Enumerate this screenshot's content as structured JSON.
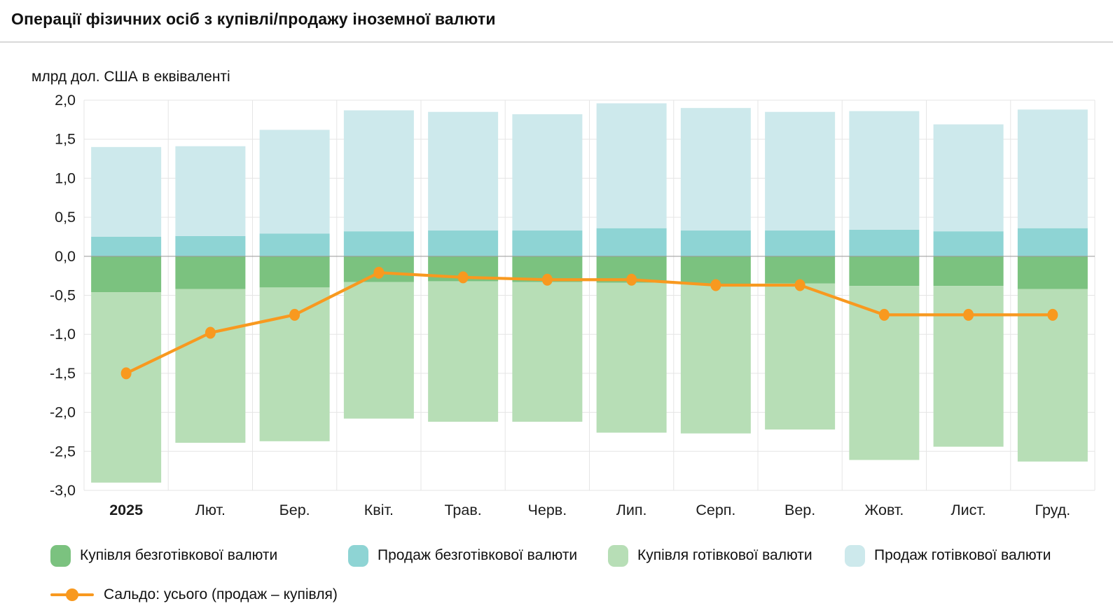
{
  "header": {
    "title": "Операції фізичних осіб з купівлі/продажу іноземної валюти"
  },
  "chart_data": {
    "type": "bar",
    "subtype": "stacked-bars-with-line",
    "title": "Операції фізичних осіб з купівлі/продажу іноземної валюти",
    "ylabel": "млрд дол. США в еквіваленті",
    "xlabel": "",
    "ylim": [
      -3.0,
      2.0
    ],
    "y_tick_step": 0.5,
    "y_tick_labels": [
      "2,0",
      "1,5",
      "1,0",
      "0,5",
      "0,0",
      "-0,5",
      "-1,0",
      "-1,5",
      "-2,0",
      "-2,5",
      "-3,0"
    ],
    "grid": true,
    "legend_position": "bottom",
    "categories": [
      "2025",
      "Лют.",
      "Бер.",
      "Квіт.",
      "Трав.",
      "Черв.",
      "Лип.",
      "Серп.",
      "Вер.",
      "Жовт.",
      "Лист.",
      "Груд."
    ],
    "series": [
      {
        "id": "buy-cashless",
        "name": "Купівля безготівкової валюти",
        "type": "bar",
        "stack": "negative",
        "color": "#7bc27f",
        "values": [
          -0.46,
          -0.42,
          -0.4,
          -0.33,
          -0.32,
          -0.33,
          -0.34,
          -0.36,
          -0.35,
          -0.38,
          -0.38,
          -0.42
        ]
      },
      {
        "id": "sell-cashless",
        "name": "Продаж безготівкової валюти",
        "type": "bar",
        "stack": "positive",
        "color": "#8ed4d4",
        "values": [
          0.25,
          0.26,
          0.29,
          0.32,
          0.33,
          0.33,
          0.36,
          0.33,
          0.33,
          0.34,
          0.32,
          0.36
        ]
      },
      {
        "id": "buy-cash",
        "name": "Купівля готівкової валюти",
        "type": "bar",
        "stack": "negative",
        "color": "#b7deb6",
        "values": [
          -2.44,
          -1.97,
          -1.97,
          -1.75,
          -1.8,
          -1.79,
          -1.92,
          -1.91,
          -1.87,
          -2.23,
          -2.06,
          -2.21
        ]
      },
      {
        "id": "sell-cash",
        "name": "Продаж готівкової валюти",
        "type": "bar",
        "stack": "positive",
        "color": "#cde9ec",
        "values": [
          1.15,
          1.15,
          1.33,
          1.55,
          1.52,
          1.49,
          1.6,
          1.57,
          1.52,
          1.52,
          1.37,
          1.52
        ]
      }
    ],
    "line_series": {
      "id": "saldo",
      "name": "Сальдо: усього (продаж – купівля)",
      "type": "line",
      "color": "#f8991f",
      "values": [
        -1.5,
        -0.98,
        -0.75,
        -0.21,
        -0.27,
        -0.3,
        -0.3,
        -0.37,
        -0.37,
        -0.75,
        -0.75,
        -0.75
      ]
    },
    "colors": {
      "grid_line": "#e5e5e5",
      "zero_line": "#9a9a9a",
      "axis_text": "#1c1c1c"
    }
  }
}
